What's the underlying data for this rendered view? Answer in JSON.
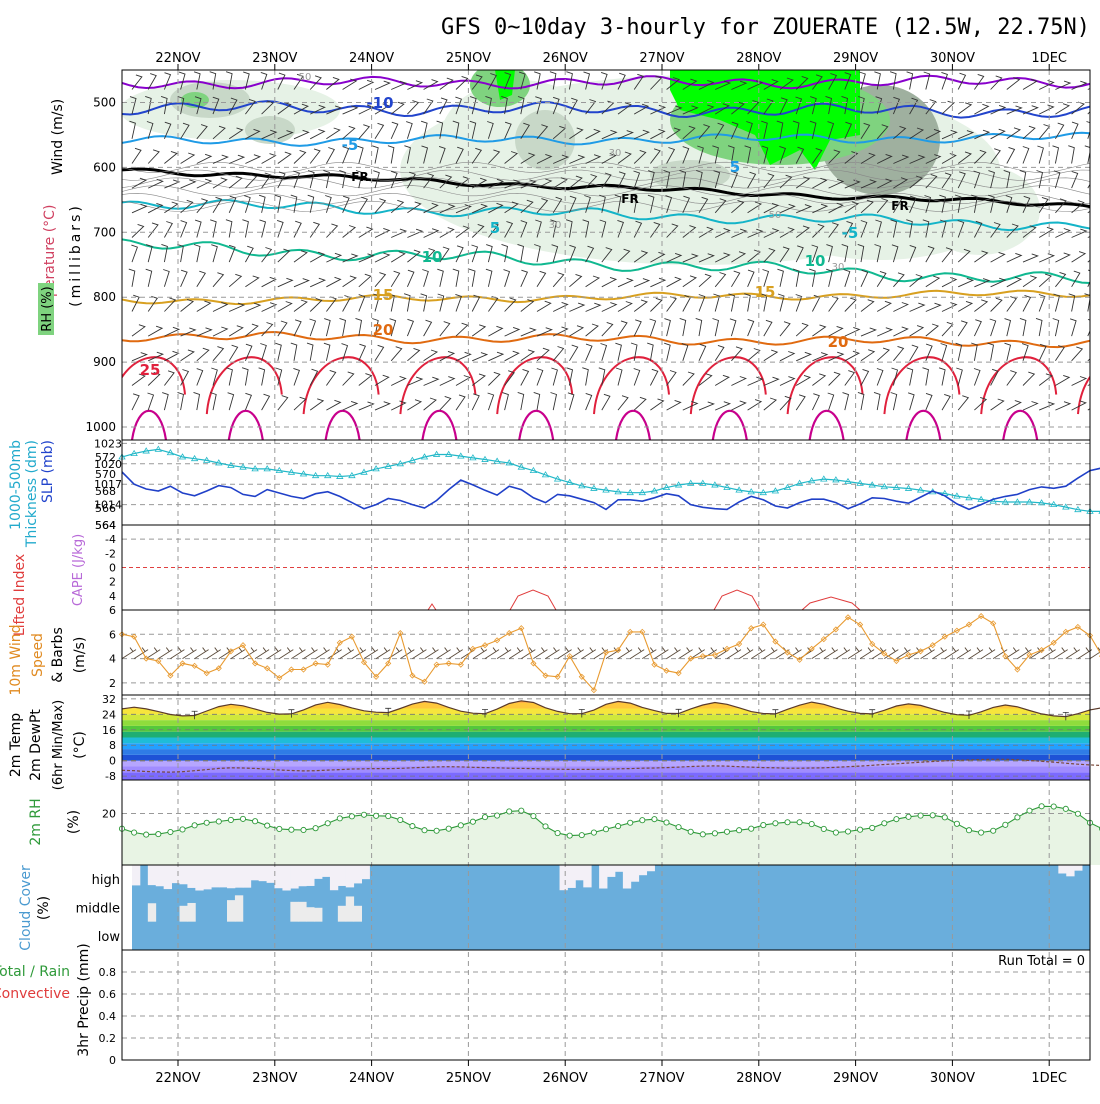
{
  "chart_data": {
    "type": "meteogram",
    "title": "GFS 0~10day 3-hourly for ZOUERATE (12.5W, 22.75N)",
    "dates": [
      "22NOV",
      "23NOV",
      "24NOV",
      "25NOV",
      "26NOV",
      "27NOV",
      "28NOV",
      "29NOV",
      "30NOV",
      "1DEC"
    ],
    "steps_per_day": 8,
    "upper_air": {
      "ylabel": "(millibars)",
      "legend": [
        "Wind (m/s)",
        "Temperature (°C)",
        "RH (%)"
      ],
      "pressure_ticks": [
        500,
        600,
        700,
        800,
        900,
        1000
      ],
      "ylim": [
        450,
        1020
      ],
      "isotherm_labels": [
        "-10",
        "-5",
        "FR",
        "FR",
        "FR",
        "5",
        "5",
        "-5",
        "10",
        "10",
        "15",
        "15",
        "20",
        "20",
        "25"
      ],
      "rh_labels": [
        "50",
        "30",
        "30",
        "50",
        "30"
      ],
      "isotherm_colors": {
        "m15": "#8800cc",
        "m10": "#2244cc",
        "m5": "#1f9be6",
        "fr": "#000000",
        "p5": "#14b4c8",
        "p10": "#10b890",
        "p15": "#d8a020",
        "p20": "#e06a10",
        "p25": "#e0203c",
        "p30": "#c8008c"
      }
    },
    "slp_thickness": {
      "left_labels": [
        "1000-500mb",
        "Thickness (dm)"
      ],
      "right_labels": [
        "SLP (mb)"
      ],
      "thickness_ticks": [
        564,
        566,
        568,
        570,
        572
      ],
      "slp_ticks": [
        1014,
        1017,
        1020,
        1023
      ],
      "thickness_range": [
        564,
        574
      ],
      "slp_range": [
        1011,
        1023.5
      ],
      "thickness_values": [
        572.0,
        572.4,
        572.7,
        572.9,
        572.5,
        572.0,
        571.8,
        571.6,
        571.3,
        571.0,
        570.8,
        570.6,
        570.6,
        570.4,
        570.2,
        570.0,
        569.8,
        569.8,
        569.7,
        569.8,
        570.2,
        570.6,
        570.9,
        571.2,
        571.6,
        572.0,
        572.3,
        572.3,
        572.1,
        571.9,
        571.7,
        571.5,
        571.3,
        570.8,
        570.4,
        569.9,
        569.4,
        569.0,
        568.6,
        568.3,
        568.1,
        567.9,
        567.8,
        567.8,
        568.0,
        568.4,
        568.7,
        568.9,
        568.9,
        568.7,
        568.4,
        568.1,
        567.9,
        567.8,
        568.0,
        568.4,
        568.9,
        569.2,
        569.4,
        569.3,
        569.1,
        568.9,
        568.7,
        568.5,
        568.4,
        568.3,
        568.1,
        567.9,
        567.7,
        567.4,
        567.2,
        567.0,
        566.8,
        566.7,
        566.7,
        566.7,
        566.6,
        566.4,
        566.1,
        565.8,
        565.6,
        565.6,
        565.9,
        566.3,
        566.6,
        566.7,
        566.6,
        566.3,
        566.0,
        565.7,
        565.5,
        565.3,
        565.1,
        565.0,
        565.0,
        565.2,
        565.5,
        565.6,
        565.4,
        565.1,
        564.8,
        564.6,
        564.5
      ],
      "slp_values": [
        1018.8,
        1017.0,
        1016.3,
        1016.0,
        1016.7,
        1015.7,
        1015.3,
        1016.0,
        1016.8,
        1016.5,
        1015.5,
        1015.2,
        1016.2,
        1015.7,
        1015.2,
        1014.9,
        1015.6,
        1015.9,
        1015.2,
        1014.3,
        1013.4,
        1014.0,
        1014.9,
        1014.6,
        1014.0,
        1013.5,
        1014.6,
        1016.2,
        1017.6,
        1016.9,
        1016.1,
        1015.4,
        1016.7,
        1016.2,
        1015.0,
        1014.3,
        1015.5,
        1015.3,
        1014.8,
        1014.3,
        1013.3,
        1014.7,
        1014.7,
        1014.5,
        1015.0,
        1015.6,
        1015.3,
        1014.0,
        1013.6,
        1013.4,
        1013.3,
        1014.4,
        1015.2,
        1014.7,
        1013.8,
        1013.5,
        1014.3,
        1014.8,
        1014.8,
        1014.3,
        1013.4,
        1014.1,
        1015.0,
        1014.9,
        1014.5,
        1014.2,
        1015.1,
        1016.0,
        1015.3,
        1014.1,
        1013.3,
        1014.0,
        1014.8,
        1015.2,
        1015.5,
        1016.2,
        1016.6,
        1016.4,
        1016.7,
        1017.9,
        1019.0,
        1019.4,
        1018.9,
        1019.4,
        1020.2,
        1020.9,
        1021.5,
        1020.6,
        1020.4,
        1021.1,
        1021.8,
        1023.1,
        1022.0,
        1021.2,
        1021.3,
        1021.8,
        1021.1,
        1020.2,
        1020.7,
        1022.0,
        1022.8,
        1022.4,
        1022.4
      ]
    },
    "stability": {
      "left_labels": [
        "Lifted Index",
        "CAPE (J/kg)"
      ],
      "li_ticks": [
        -4,
        -2,
        0,
        2,
        4,
        6
      ],
      "li_range": [
        -6,
        6
      ]
    },
    "wind10m": {
      "label": "10m Wind",
      "sublabels": [
        "Speed",
        "& Barbs",
        "(m/s)"
      ],
      "ticks": [
        2,
        4,
        6
      ],
      "ylim": [
        1,
        8
      ],
      "values": [
        6.0,
        5.8,
        4.0,
        3.8,
        2.6,
        3.6,
        3.4,
        2.8,
        3.2,
        4.6,
        5.1,
        3.6,
        3.2,
        2.4,
        3.1,
        3.1,
        3.6,
        3.5,
        5.3,
        5.8,
        3.7,
        2.5,
        3.6,
        6.1,
        2.6,
        2.1,
        3.5,
        3.6,
        3.5,
        4.8,
        5.1,
        5.5,
        6.1,
        6.5,
        3.6,
        2.6,
        2.5,
        4.2,
        2.5,
        1.4,
        4.5,
        4.7,
        6.2,
        6.2,
        3.5,
        3.0,
        2.8,
        4.0,
        4.2,
        4.3,
        4.8,
        5.2,
        6.5,
        6.8,
        5.4,
        4.5,
        3.9,
        4.8,
        5.6,
        6.4,
        7.4,
        6.8,
        5.2,
        4.4,
        3.8,
        4.3,
        4.6,
        5.1,
        5.8,
        6.3,
        6.8,
        7.5,
        6.9,
        4.2,
        3.1,
        4.3,
        4.7,
        5.3,
        6.2,
        6.6,
        5.9,
        4.2,
        4.3,
        4.4,
        4.6,
        5.2,
        5.6,
        6.0,
        7.3,
        7.0,
        5.8,
        4.2,
        4.5,
        4.7,
        4.5,
        4.5,
        4.6,
        5.8,
        7.5,
        7.4,
        5.7,
        5.2,
        4.7
      ]
    },
    "temp2m": {
      "left_labels": [
        "2m Temp",
        "2m DewPt",
        "(6hr Min/Max)",
        "(°C)"
      ],
      "ticks": [
        -8,
        0,
        8,
        16,
        24,
        32
      ],
      "ylim": [
        -10,
        34
      ],
      "temp_values": [
        26.8,
        27.7,
        26.8,
        25.4,
        23.9,
        23.2,
        23.4,
        25.7,
        28.0,
        29.2,
        28.4,
        26.7,
        25.0,
        24.1,
        24.2,
        26.3,
        28.9,
        30.2,
        29.1,
        27.3,
        25.8,
        25.1,
        24.9,
        27.0,
        29.3,
        30.7,
        29.8,
        27.6,
        25.6,
        24.6,
        24.3,
        26.7,
        29.6,
        31.0,
        30.1,
        27.4,
        25.5,
        24.3,
        24.3,
        26.2,
        29.2,
        30.7,
        29.8,
        27.6,
        25.9,
        24.5,
        24.4,
        26.8,
        28.8,
        30.1,
        29.2,
        27.4,
        25.4,
        24.4,
        24.2,
        26.6,
        28.7,
        30.3,
        29.2,
        27.2,
        25.6,
        24.5,
        24.2,
        26.1,
        28.3,
        29.4,
        28.6,
        26.8,
        25.0,
        23.8,
        23.5,
        25.3,
        27.6,
        28.8,
        27.9,
        26.0,
        24.2,
        23.2,
        22.8,
        24.3,
        26.3,
        27.4,
        26.3,
        24.4,
        22.8,
        21.7,
        21.3,
        22.8,
        24.8,
        25.7,
        24.7,
        23.0,
        21.3,
        20.3,
        20.1,
        21.6,
        23.8,
        24.7,
        23.9,
        22.3,
        20.5,
        19.2,
        18.6
      ],
      "dewpt_values": [
        -5.0,
        -5.2,
        -5.6,
        -5.8,
        -5.9,
        -5.7,
        -5.2,
        -4.6,
        -4.0,
        -3.7,
        -3.8,
        -4.0,
        -4.4,
        -4.8,
        -5.1,
        -5.3,
        -5.2,
        -4.9,
        -4.6,
        -4.3,
        -4.2,
        -4.1,
        -4.1,
        -4.0,
        -3.7,
        -3.4,
        -3.2,
        -3.1,
        -3.2,
        -3.4,
        -3.6,
        -3.7,
        -3.9,
        -4.0,
        -4.1,
        -4.3,
        -4.4,
        -4.5,
        -4.5,
        -4.5,
        -4.4,
        -4.2,
        -4.1,
        -3.9,
        -3.8,
        -3.6,
        -3.3,
        -3.0,
        -2.8,
        -2.7,
        -2.8,
        -3.1,
        -3.3,
        -3.6,
        -3.7,
        -3.9,
        -3.9,
        -3.8,
        -3.7,
        -3.4,
        -3.1,
        -2.8,
        -2.4,
        -2.0,
        -1.6,
        -1.2,
        -0.8,
        -0.4,
        -0.1,
        0.2,
        0.4,
        0.6,
        0.7,
        0.7,
        0.5,
        0.1,
        -0.3,
        -0.8,
        -1.3,
        -1.8,
        -2.2,
        -2.5,
        -2.7,
        -2.9,
        -3.0,
        -3.2,
        -3.5,
        -3.8,
        -4.1,
        -4.3,
        -4.5,
        -4.6,
        -4.7,
        -4.7,
        -4.6,
        -4.4,
        -4.1,
        -3.7,
        -3.4,
        -3.3,
        -3.4,
        -3.7,
        -4.1
      ],
      "band_colors": [
        "#7b6aff",
        "#a08cff",
        "#b6a6ff",
        "#1e52d6",
        "#2f7ce6",
        "#24a0ff",
        "#1fbcd8",
        "#1fae72",
        "#54c83c",
        "#8fdc3c",
        "#d0e83c",
        "#f7e53c",
        "#ffc83c",
        "#ff9a28",
        "#ff6a14",
        "#e83c14"
      ]
    },
    "rh2m": {
      "label": "2m RH",
      "unit": "(%)",
      "ticks": [
        20
      ],
      "ylim": [
        0,
        33
      ],
      "values": [
        14.1,
        12.6,
        11.8,
        12.0,
        12.8,
        13.8,
        15.4,
        16.4,
        16.9,
        17.5,
        17.9,
        17.0,
        15.3,
        14.0,
        13.7,
        13.6,
        14.3,
        16.2,
        18.1,
        18.9,
        19.5,
        19.1,
        19.0,
        17.5,
        15.1,
        13.5,
        13.3,
        14.1,
        15.4,
        16.8,
        18.6,
        19.2,
        20.8,
        21.1,
        19.0,
        15.0,
        12.4,
        11.4,
        11.6,
        12.6,
        13.9,
        15.1,
        16.4,
        17.4,
        17.8,
        16.5,
        14.7,
        12.9,
        11.9,
        12.3,
        12.9,
        13.5,
        14.1,
        15.5,
        16.2,
        16.6,
        16.6,
        15.9,
        14.0,
        12.6,
        13.0,
        13.7,
        14.4,
        16.2,
        17.8,
        18.7,
        19.2,
        19.3,
        18.5,
        16.0,
        13.5,
        12.6,
        13.3,
        15.6,
        18.5,
        21.1,
        22.8,
        22.7,
        21.8,
        19.9,
        16.4,
        14.1,
        13.6,
        14.4,
        16.9,
        20.0,
        21.9,
        22.3,
        22.3,
        20.7,
        17.8,
        15.0,
        13.9,
        14.4,
        15.8,
        18.3,
        21.0,
        20.1,
        17.8,
        14.8,
        13.4,
        15.2,
        19.9,
        24.5,
        25.0,
        26.5,
        27.3
      ]
    },
    "cloud_cover": {
      "label": "Cloud Cover",
      "unit": "(%)",
      "levels": [
        "high",
        "middle",
        "low"
      ],
      "high_clear": [
        0.72,
        0.0,
        0.71,
        0.75,
        0.85,
        0.64,
        0.68,
        0.81,
        0.9,
        0.86,
        0.79,
        0.79,
        0.82,
        0.8,
        0.8,
        0.54,
        0.57,
        0.63,
        0.82,
        0.9,
        0.83,
        0.75,
        0.74,
        0.49,
        0.42,
        0.89,
        0.74,
        0.79,
        0.65,
        0.5,
        0.0,
        0.0,
        0.0,
        0.0,
        0.0,
        0.0,
        0.0,
        0.0,
        0.0,
        0.0,
        0.0,
        0.0,
        0.0,
        0.0,
        0.0,
        0.0,
        0.0,
        0.0,
        0.0,
        0.0,
        0.0,
        0.0,
        0.0,
        0.0,
        0.89,
        0.81,
        0.54,
        0.79,
        0.0,
        0.83,
        0.42,
        0.24,
        0.83,
        0.59,
        0.36,
        0.22,
        0.0,
        0.0,
        0.0,
        0.0,
        0.0,
        0.0,
        0.0,
        0.0,
        0.0,
        0.0,
        0.0,
        0.0,
        0.0,
        0.0,
        0.0,
        0.0,
        0.0,
        0.0,
        0.0,
        0.0,
        0.0,
        0.0,
        0.0,
        0.0,
        0.0,
        0.0,
        0.0,
        0.0,
        0.0,
        0.0,
        0.0,
        0.0,
        0.0,
        0.0,
        0.0,
        0.0,
        0.0,
        0.0,
        0.0,
        0.0,
        0.0,
        0.0,
        0.0,
        0.0,
        0.0,
        0.0,
        0.0,
        0.0,
        0.0,
        0.0,
        0.0,
        0.3,
        0.4,
        0.2,
        0.0
      ],
      "mid_clear": [
        0.0,
        0.0,
        0.65,
        0.0,
        0.0,
        0.0,
        0.56,
        0.66,
        0.0,
        0.0,
        0.0,
        0.0,
        0.76,
        0.93,
        0.0,
        0.0,
        0.0,
        0.0,
        0.0,
        0.0,
        0.7,
        0.7,
        0.51,
        0.49,
        0.0,
        0.0,
        0.56,
        0.89,
        0.56,
        0.0,
        0.0,
        0.0,
        0.0,
        0.0,
        0.0,
        0.0,
        0.0,
        0.0,
        0.0,
        0.0,
        0.0,
        0.0,
        0.0,
        0.0,
        0.0,
        0.0,
        0.0,
        0.0,
        0.0,
        0.0,
        0.0,
        0.0,
        0.0,
        0.0,
        0.0,
        0.0,
        0.0,
        0.0,
        0.0,
        0.0,
        0.0,
        0.0,
        0.0,
        0.0,
        0.0,
        0.0,
        0.0,
        0.0,
        0.0,
        0.0,
        0.0,
        0.0,
        0.0,
        0.0,
        0.0,
        0.0,
        0.0,
        0.0,
        0.0,
        0.0,
        0.0,
        0.0,
        0.0,
        0.0,
        0.0,
        0.0,
        0.0,
        0.0,
        0.0,
        0.0,
        0.0,
        0.0,
        0.0,
        0.0,
        0.0,
        0.0,
        0.0,
        0.0,
        0.0,
        0.0,
        0.0,
        0.0,
        0.0,
        0.0,
        0.0,
        0.0,
        0.0,
        0.0,
        0.0,
        0.0,
        0.0,
        0.0,
        0.0,
        0.0,
        0.0,
        0.0,
        0.0,
        0.0,
        0.0,
        0.0,
        0.0
      ]
    },
    "precip": {
      "left_labels": [
        "Total / Rain",
        "Convective",
        "3hr Precip (mm)"
      ],
      "ticks": [
        0,
        0.2,
        0.4,
        0.6,
        0.8
      ],
      "ylim": [
        0,
        1
      ],
      "run_total": "Run Total = 0"
    }
  }
}
